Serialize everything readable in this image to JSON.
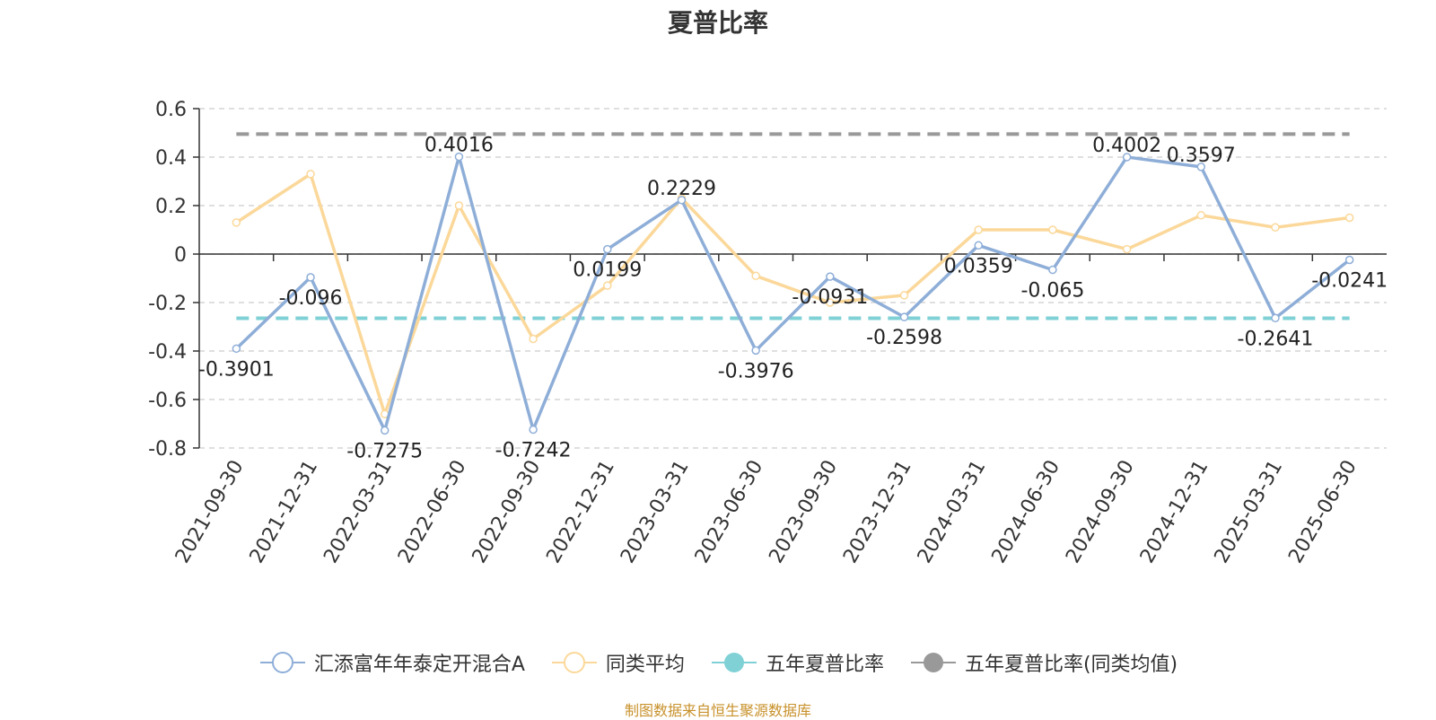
{
  "chart_data": {
    "type": "line",
    "title": "夏普比率",
    "categories": [
      "2021-09-30",
      "2021-12-31",
      "2022-03-31",
      "2022-06-30",
      "2022-09-30",
      "2022-12-31",
      "2023-03-31",
      "2023-06-30",
      "2023-09-30",
      "2023-12-31",
      "2024-03-31",
      "2024-06-30",
      "2024-09-30",
      "2024-12-31",
      "2025-03-31",
      "2025-06-30"
    ],
    "series": [
      {
        "name": "汇添富年年泰定开混合A",
        "color": "#8eaed8",
        "values": [
          -0.3901,
          -0.096,
          -0.7275,
          0.4016,
          -0.7242,
          0.0199,
          0.2229,
          -0.3976,
          -0.0931,
          -0.2598,
          0.0359,
          -0.065,
          0.4002,
          0.3597,
          -0.2641,
          -0.0241
        ],
        "data_labels": [
          "-0.3901",
          "-0.096",
          "-0.7275",
          "0.4016",
          "-0.7242",
          "0.0199",
          "0.2229",
          "-0.3976",
          "-0.0931",
          "-0.2598",
          "0.0359",
          "-0.065",
          "0.4002",
          "0.3597",
          "-0.2641",
          "-0.0241"
        ]
      },
      {
        "name": "同类平均",
        "color": "#fbd89a",
        "values": [
          0.13,
          0.33,
          -0.66,
          0.2,
          -0.35,
          -0.13,
          0.23,
          -0.09,
          -0.2,
          -0.17,
          0.1,
          0.1,
          0.02,
          0.16,
          0.11,
          0.15
        ]
      },
      {
        "name": "五年夏普比率",
        "color": "#7fd1d6",
        "constant": -0.265,
        "style": "dashed"
      },
      {
        "name": "五年夏普比率(同类均值)",
        "color": "#999999",
        "constant": 0.495,
        "style": "dashed"
      }
    ],
    "y_ticks": [
      "0.6",
      "0.4",
      "0.2",
      "0",
      "-0.2",
      "-0.4",
      "-0.6",
      "-0.8"
    ],
    "ylim": [
      -0.8,
      0.6
    ],
    "grid": true,
    "legend_position": "bottom"
  },
  "source_note": "制图数据来自恒生聚源数据库"
}
